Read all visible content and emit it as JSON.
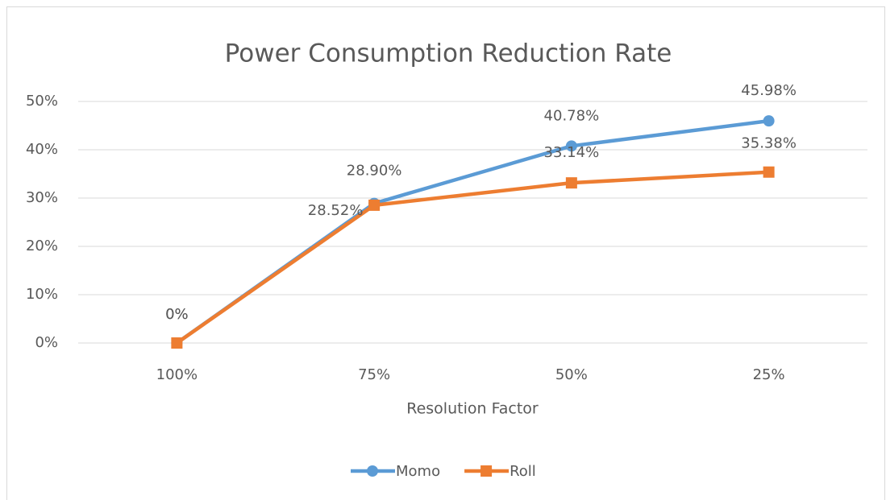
{
  "chart_data": {
    "type": "line",
    "title": "Power Consumption Reduction Rate",
    "x_label": "Resolution Factor",
    "categories": [
      "100%",
      "75%",
      "50%",
      "25%"
    ],
    "series": [
      {
        "name": "Momo",
        "color": "#5b9bd5",
        "marker": "circle",
        "values": [
          0,
          28.9,
          40.78,
          45.98
        ],
        "value_labels": [
          "0%",
          "28.90%",
          "40.78%",
          "45.98%"
        ]
      },
      {
        "name": "Roll",
        "color": "#ed7d31",
        "marker": "square",
        "values": [
          0,
          28.52,
          33.14,
          35.38
        ],
        "value_labels": [
          "0%",
          "28.52%",
          "33.14%",
          "35.38%"
        ]
      }
    ],
    "ylim": [
      0,
      50
    ],
    "yticks": [
      {
        "value": 0,
        "label": "0%"
      },
      {
        "value": 10,
        "label": "10%"
      },
      {
        "value": 20,
        "label": "20%"
      },
      {
        "value": 30,
        "label": "30%"
      },
      {
        "value": 40,
        "label": "40%"
      },
      {
        "value": 50,
        "label": "50%"
      }
    ],
    "grid": true,
    "legend": "bottom"
  }
}
